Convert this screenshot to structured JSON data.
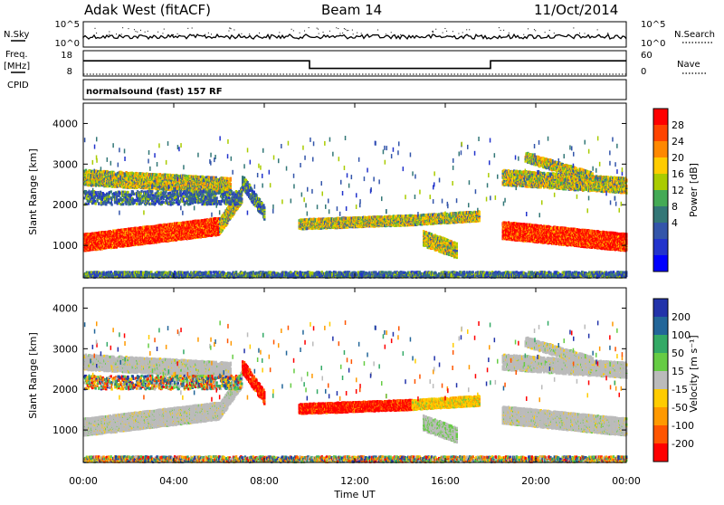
{
  "header": {
    "title": "Adak West (fitACF)",
    "beam": "Beam 14",
    "date": "11/Oct/2014"
  },
  "left_labels": {
    "nsky": "N.Sky",
    "freq": "Freq.",
    "freq_unit": "[MHz]",
    "cpid": "CPID"
  },
  "right_labels": {
    "nsearch": "N.Search",
    "nave": "Nave"
  },
  "noise_panel": {
    "left_ticks": [
      "10^5",
      "10^0"
    ],
    "right_ticks": [
      "10^5",
      "10^0"
    ]
  },
  "freq_panel": {
    "left_ticks": [
      "18",
      "8"
    ],
    "right_ticks": [
      "60",
      "0"
    ]
  },
  "cpid_text": "normalsound (fast) 157 RF",
  "time_axis": {
    "label": "Time UT",
    "ticks": [
      "00:00",
      "04:00",
      "08:00",
      "12:00",
      "16:00",
      "20:00",
      "00:00"
    ]
  },
  "power_colorbar": {
    "label": "Power [dB]",
    "ticks": [
      "28",
      "24",
      "20",
      "16",
      "12",
      "8",
      "4"
    ],
    "colors": [
      "#ff0000",
      "#ff4400",
      "#ff8800",
      "#ffcc00",
      "#aacc00",
      "#44aa55",
      "#337777",
      "#3355aa",
      "#2233cc",
      "#0000ff"
    ]
  },
  "velocity_colorbar": {
    "label": "Velocity [m s⁻¹]",
    "ticks": [
      "200",
      "100",
      "50",
      "15",
      "-15",
      "-50",
      "-100",
      "-200"
    ],
    "colors": [
      "#2233aa",
      "#226699",
      "#33aa66",
      "#66cc44",
      "#bbbbbb",
      "#ffcc00",
      "#ff9900",
      "#ff5500",
      "#ff0000"
    ]
  },
  "chart_data": [
    {
      "type": "line",
      "title": "",
      "ylabel": "N.Sky",
      "x_range_hours": [
        0,
        24
      ],
      "y_scale": "log",
      "ylim": [
        "10^0",
        "10^5"
      ]
    },
    {
      "type": "line",
      "ylabel": "Freq. [MHz]",
      "ylim": [
        8,
        18
      ],
      "series": [
        {
          "name": "Freq.",
          "x": [
            0,
            10,
            10,
            18,
            18,
            24
          ],
          "values": [
            14,
            14,
            11,
            11,
            14,
            14
          ]
        },
        {
          "name": "Nave",
          "x": [
            0,
            24
          ],
          "values": [
            8,
            8
          ]
        }
      ]
    },
    {
      "type": "heatmap",
      "ylabel": "Slant Range [km]",
      "xlabel": "Time UT",
      "ylim": [
        200,
        4500
      ],
      "y_ticks": [
        "1000",
        "2000",
        "3000",
        "4000"
      ],
      "colorbar": "Power [dB]",
      "clim": [
        0,
        30
      ]
    },
    {
      "type": "heatmap",
      "ylabel": "Slant Range [km]",
      "xlabel": "Time UT",
      "ylim": [
        200,
        4500
      ],
      "y_ticks": [
        "1000",
        "2000",
        "3000",
        "4000"
      ],
      "colorbar": "Velocity [m s⁻¹]",
      "clim": [
        -200,
        200
      ]
    }
  ]
}
